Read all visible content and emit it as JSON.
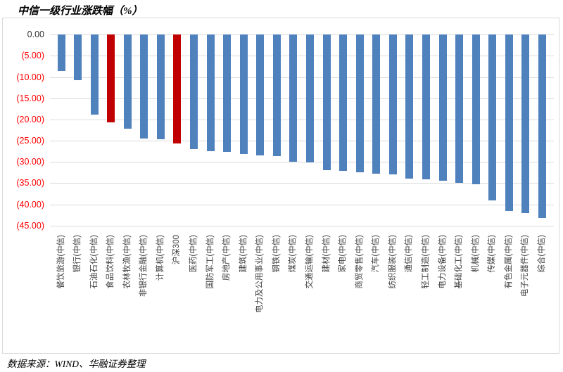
{
  "title": "中信一级行业涨跌幅（%）",
  "footer": "数据来源：WIND、华融证券整理",
  "chart_data": {
    "type": "bar",
    "title": "中信一级行业涨跌幅（%）",
    "xlabel": "",
    "ylabel": "",
    "ylim": [
      -45,
      0
    ],
    "ytick_step": 5,
    "grid": true,
    "legend": "none",
    "bar_orientation": "vertical-negative",
    "ytick_labels": [
      "0.00",
      "(5.00)",
      "(10.00)",
      "(15.00)",
      "(20.00)",
      "(25.00)",
      "(30.00)",
      "(35.00)",
      "(40.00)",
      "(45.00)"
    ],
    "categories": [
      "餐饮旅游(中信)",
      "银行(中信)",
      "石油石化(中信)",
      "食品饮料(中信)",
      "农林牧渔(中信)",
      "非银行金融(中信)",
      "计算机(中信)",
      "沪深300",
      "医药(中信)",
      "国防军工(中信)",
      "房地产(中信)",
      "建筑(中信)",
      "电力及公用事业(中信)",
      "钢铁(中信)",
      "煤炭(中信)",
      "交通运输(中信)",
      "建材(中信)",
      "家电(中信)",
      "商贸零售(中信)",
      "汽车(中信)",
      "纺织服装(中信)",
      "通信(中信)",
      "轻工制造(中信)",
      "电力设备(中信)",
      "基础化工(中信)",
      "机械(中信)",
      "传媒(中信)",
      "有色金属(中信)",
      "电子元器件(中信)",
      "综合(中信)"
    ],
    "values": [
      -8.5,
      -10.7,
      -18.9,
      -20.7,
      -22.2,
      -24.5,
      -24.7,
      -25.6,
      -26.9,
      -27.4,
      -27.6,
      -28.2,
      -28.5,
      -28.7,
      -29.9,
      -30.2,
      -31.9,
      -32.1,
      -32.4,
      -32.8,
      -33.0,
      -33.9,
      -34.1,
      -34.5,
      -35.0,
      -35.3,
      -39.1,
      -41.6,
      -42.1,
      -43.2
    ],
    "highlight_indices": [
      3,
      7
    ],
    "colors": {
      "bar": "#4f81bd",
      "highlight_bar": "#c00000",
      "gridline": "#d9d9d9",
      "ytick_zero": "#333333",
      "ytick_negative": "#ff0000",
      "xlabel_text": "#404040",
      "frame_border": "#d9d9d9"
    }
  }
}
